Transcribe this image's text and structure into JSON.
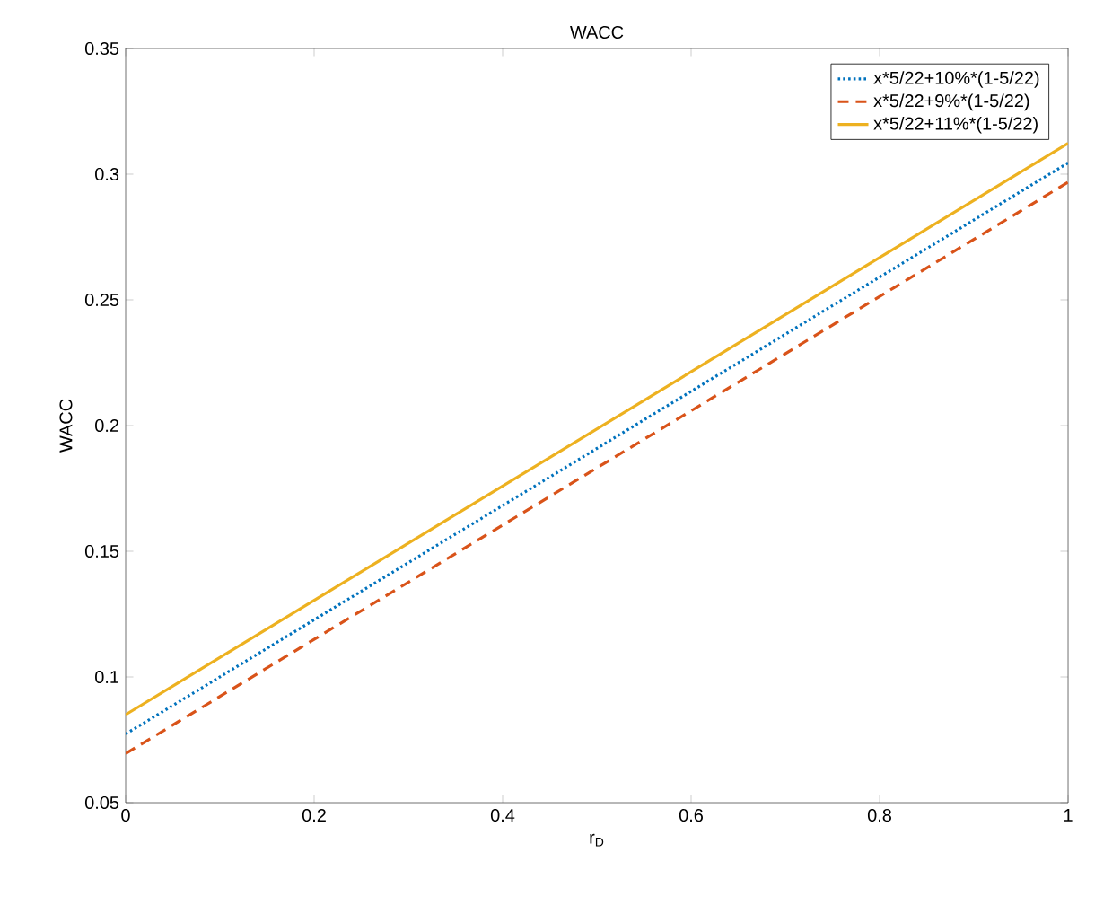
{
  "chart_data": {
    "type": "line",
    "title": "WACC",
    "xlabel": "r$_{D}$",
    "ylabel": "WACC",
    "x": [
      0,
      1
    ],
    "series": [
      {
        "name": "x*5/22+10%*(1-5/22)",
        "color": "#0072bd",
        "line_style": "dotted",
        "values": [
          0.0773,
          0.3045
        ]
      },
      {
        "name": "x*5/22+9%*(1-5/22)",
        "color": "#d95319",
        "line_style": "dashed",
        "values": [
          0.0695,
          0.2968
        ]
      },
      {
        "name": "x*5/22+11%*(1-5/22)",
        "color": "#edb120",
        "line_style": "solid",
        "values": [
          0.085,
          0.3123
        ]
      }
    ],
    "xlim": [
      0,
      1
    ],
    "ylim": [
      0.05,
      0.35
    ],
    "xticks": [
      0,
      0.2,
      0.4,
      0.6,
      0.8,
      1
    ],
    "yticks": [
      0.05,
      0.1,
      0.15,
      0.2,
      0.25,
      0.3,
      0.35
    ],
    "legend": "top right",
    "grid": false,
    "marker": "none"
  }
}
